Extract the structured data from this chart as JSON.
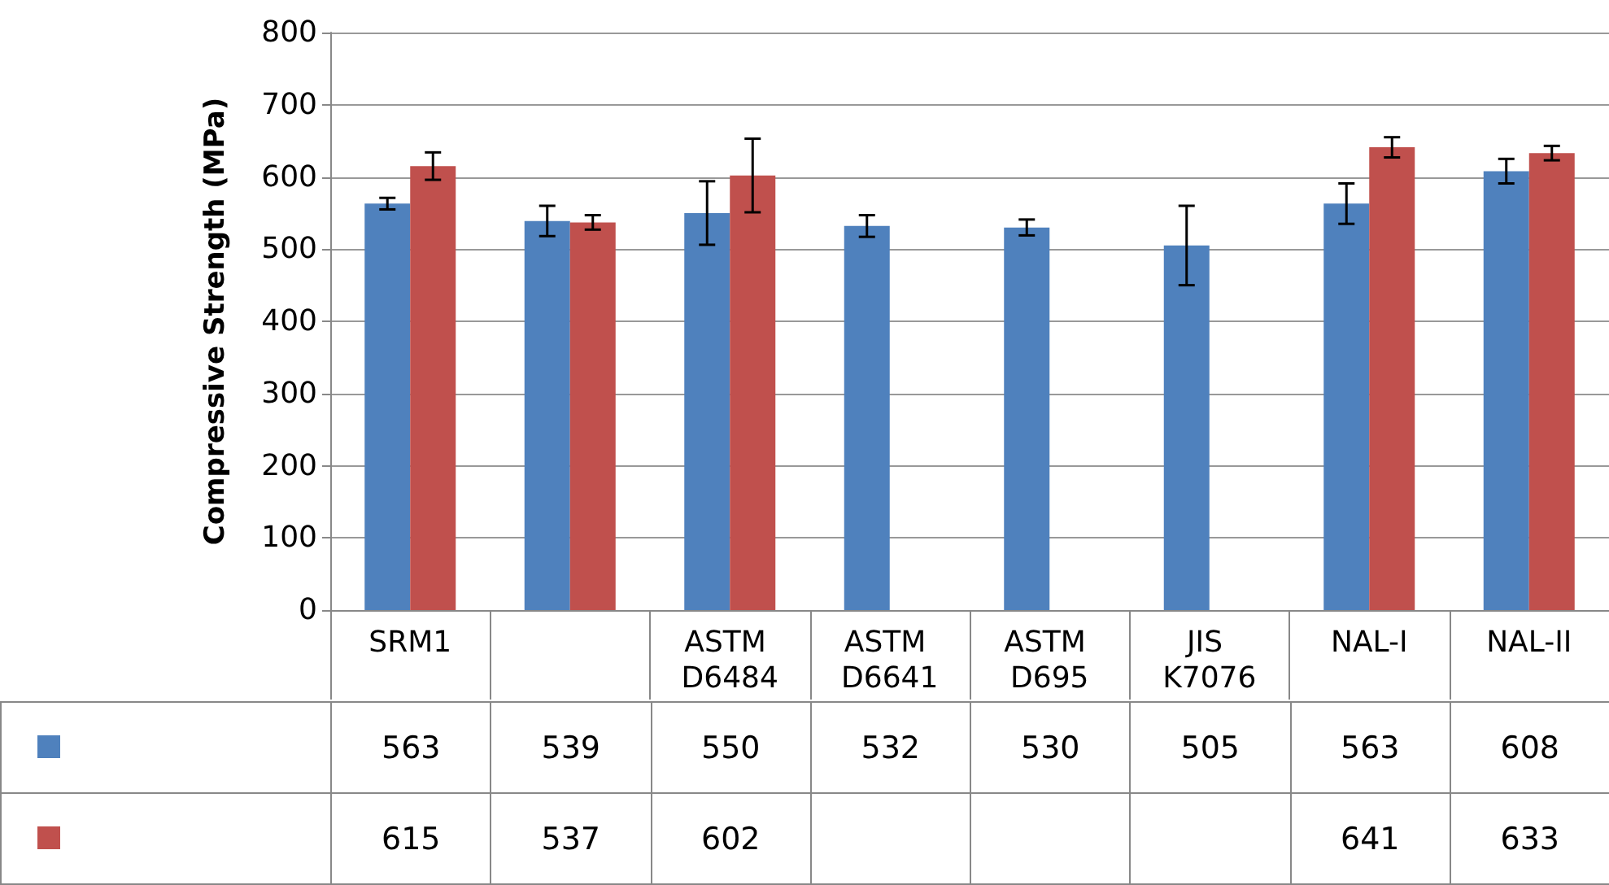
{
  "chart_data": {
    "type": "bar",
    "ylabel": "Compressive Strength (MPa)",
    "categories": [
      "SRM1",
      null,
      "ASTM D6484",
      "ASTM D6641",
      "ASTM D695",
      "JIS K7076",
      "NAL-I",
      "NAL-II"
    ],
    "series": [
      {
        "color": "#4f81bd",
        "values": [
          563,
          539,
          550,
          532,
          530,
          505,
          563,
          608
        ],
        "errors": [
          8,
          21,
          44,
          15,
          11,
          55,
          28,
          17
        ]
      },
      {
        "color": "#c0504d",
        "values": [
          615,
          537,
          602,
          null,
          null,
          null,
          641,
          633
        ],
        "errors": [
          19,
          10,
          51,
          null,
          null,
          null,
          14,
          10
        ]
      }
    ],
    "ylim": [
      0,
      800
    ],
    "yticks": [
      0,
      100,
      200,
      300,
      400,
      500,
      600,
      700,
      800
    ],
    "grid": "y",
    "data_labels": true
  }
}
